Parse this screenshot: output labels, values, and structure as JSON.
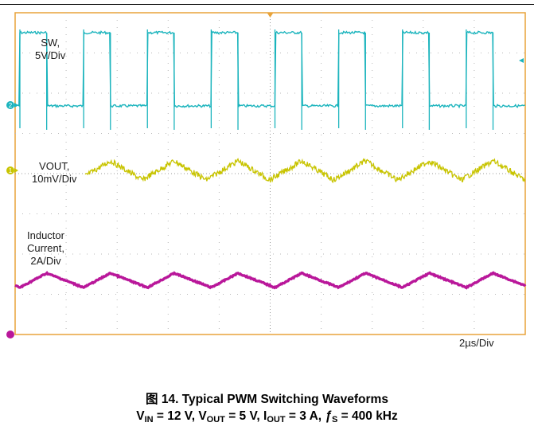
{
  "chart_data": {
    "type": "line",
    "title": "",
    "timebase": "2µs/Div",
    "grid": true,
    "divisions": {
      "x": 10,
      "y": 8
    },
    "channel_markers": [
      "2",
      "1"
    ],
    "series": [
      {
        "name": "SW",
        "label_lines": [
          "SW,",
          "5V/Div"
        ],
        "color": "#1bb4bd",
        "waveform": "square",
        "frequency_khz": 400,
        "period_div": 1.25,
        "high_v": 12,
        "low_v": 0,
        "volts_per_div": 5,
        "duty_cycle": 0.42
      },
      {
        "name": "VOUT",
        "label_lines": [
          "VOUT,",
          "10mV/Div"
        ],
        "color": "#c8c400",
        "waveform": "triangle-ripple",
        "period_div": 1.25,
        "ripple_mv_pp": 10,
        "mv_per_div": 10
      },
      {
        "name": "Inductor Current",
        "label_lines": [
          "Inductor",
          "Current,",
          "2A/Div"
        ],
        "color": "#b9179a",
        "waveform": "triangle",
        "period_div": 1.25,
        "average_a": 3,
        "ripple_a_pp": 0.8,
        "a_per_div": 2
      }
    ]
  },
  "caption": {
    "figure": "图 14. Typical PWM Switching Waveforms",
    "cond_vin_v": "V",
    "cond_vin_sub": "IN",
    "cond_vin_val": " = 12 V, ",
    "cond_vout_v": "V",
    "cond_vout_sub": "OUT",
    "cond_vout_val": " = 5 V, ",
    "cond_iout_i": "I",
    "cond_iout_sub": "OUT",
    "cond_iout_val": " = 3 A, ",
    "cond_fs_f": "ƒ",
    "cond_fs_sub": "S",
    "cond_fs_val": " = 400 kHz"
  }
}
